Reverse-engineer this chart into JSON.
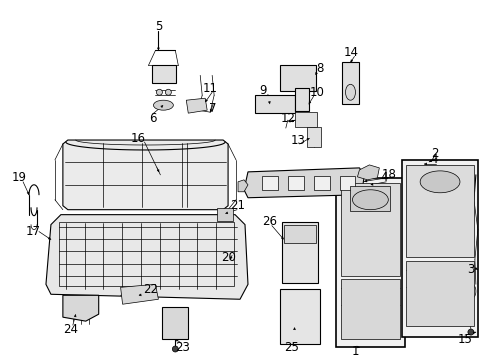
{
  "background_color": "#ffffff",
  "figsize": [
    4.89,
    3.6
  ],
  "dpi": 100,
  "line_color": "#000000",
  "text_color": "#000000",
  "font_size": 8.5,
  "font_size_small": 7.0
}
